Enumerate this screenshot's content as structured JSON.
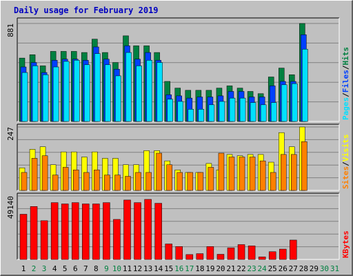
{
  "title": "Daily usage for February 2019",
  "days": [
    "1",
    "2",
    "3",
    "4",
    "5",
    "6",
    "7",
    "8",
    "9",
    "10",
    "11",
    "12",
    "13",
    "14",
    "15",
    "16",
    "17",
    "18",
    "19",
    "20",
    "21",
    "22",
    "23",
    "24",
    "25",
    "26",
    "27",
    "28",
    "29",
    "30",
    "31"
  ],
  "weekend_days": [
    "2",
    "3",
    "9",
    "10",
    "16",
    "17",
    "23",
    "24",
    "30",
    "31"
  ],
  "panels": {
    "top": {
      "max_label": "881",
      "legend": [
        {
          "text": "Pages",
          "color": "#00e0ff"
        },
        {
          "text": "/",
          "color": "#000000"
        },
        {
          "text": "Files",
          "color": "#0040ff"
        },
        {
          "text": "/",
          "color": "#000000"
        },
        {
          "text": "Hits",
          "color": "#008040"
        }
      ]
    },
    "middle": {
      "max_label": "247",
      "legend": [
        {
          "text": "Sites",
          "color": "#ff8000"
        },
        {
          "text": "/",
          "color": "#000000"
        },
        {
          "text": "Visits",
          "color": "#ffff00"
        }
      ]
    },
    "bottom": {
      "max_label": "49140",
      "legend": [
        {
          "text": "KBytes",
          "color": "#ff0000"
        }
      ]
    }
  },
  "chart_data": [
    {
      "type": "bar",
      "title": "Daily usage for February 2019",
      "ylim": [
        0,
        881
      ],
      "ytick_labels": [
        "881"
      ],
      "categories": [
        "1",
        "2",
        "3",
        "4",
        "5",
        "6",
        "7",
        "8",
        "9",
        "10",
        "11",
        "12",
        "13",
        "14",
        "15",
        "16",
        "17",
        "18",
        "19",
        "20",
        "21",
        "22",
        "23",
        "24",
        "25",
        "26",
        "27",
        "28"
      ],
      "series": [
        {
          "name": "Hits",
          "color": "#008040",
          "values": [
            570,
            600,
            500,
            630,
            630,
            630,
            620,
            740,
            620,
            530,
            770,
            680,
            680,
            620,
            360,
            300,
            280,
            280,
            280,
            300,
            320,
            300,
            270,
            250,
            400,
            480,
            420,
            881
          ]
        },
        {
          "name": "Files",
          "color": "#0040ff",
          "values": [
            490,
            530,
            440,
            550,
            560,
            560,
            550,
            670,
            560,
            470,
            680,
            560,
            620,
            550,
            240,
            230,
            210,
            220,
            220,
            230,
            270,
            270,
            220,
            220,
            320,
            360,
            360,
            780
          ]
        },
        {
          "name": "Pages",
          "color": "#00e0ff",
          "values": [
            440,
            500,
            420,
            490,
            540,
            550,
            510,
            610,
            510,
            410,
            620,
            500,
            550,
            530,
            200,
            180,
            110,
            110,
            150,
            180,
            210,
            210,
            170,
            150,
            170,
            330,
            340,
            650
          ]
        }
      ]
    },
    {
      "type": "bar",
      "ylim": [
        0,
        247
      ],
      "ytick_labels": [
        "247"
      ],
      "categories": [
        "1",
        "2",
        "3",
        "4",
        "5",
        "6",
        "7",
        "8",
        "9",
        "10",
        "11",
        "12",
        "13",
        "14",
        "15",
        "16",
        "17",
        "18",
        "19",
        "20",
        "21",
        "22",
        "23",
        "24",
        "25",
        "26",
        "27",
        "28"
      ],
      "series": [
        {
          "name": "Visits",
          "color": "#ffff00",
          "values": [
            88,
            160,
            170,
            100,
            150,
            150,
            130,
            150,
            125,
            125,
            100,
            100,
            155,
            155,
            115,
            80,
            70,
            70,
            105,
            80,
            140,
            135,
            140,
            140,
            110,
            225,
            170,
            247
          ]
        },
        {
          "name": "Sites",
          "color": "#ff8000",
          "values": [
            70,
            125,
            135,
            60,
            90,
            80,
            70,
            80,
            60,
            60,
            55,
            70,
            70,
            145,
            100,
            70,
            70,
            70,
            90,
            145,
            130,
            130,
            130,
            115,
            70,
            140,
            140,
            190
          ]
        }
      ]
    },
    {
      "type": "bar",
      "ylim": [
        0,
        49140
      ],
      "ytick_labels": [
        "49140"
      ],
      "categories": [
        "1",
        "2",
        "3",
        "4",
        "5",
        "6",
        "7",
        "8",
        "9",
        "10",
        "11",
        "12",
        "13",
        "14",
        "15",
        "16",
        "17",
        "18",
        "19",
        "20",
        "21",
        "22",
        "23",
        "24",
        "25",
        "26",
        "27",
        "28"
      ],
      "series": [
        {
          "name": "KBytes",
          "color": "#ff0000",
          "values": [
            35000,
            41000,
            30000,
            44000,
            43000,
            44000,
            43000,
            43000,
            44000,
            31000,
            46000,
            44000,
            46500,
            43500,
            12000,
            10000,
            3800,
            4500,
            10000,
            4000,
            9000,
            11500,
            10500,
            2000,
            6000,
            8000,
            15000,
            0
          ]
        }
      ]
    }
  ]
}
